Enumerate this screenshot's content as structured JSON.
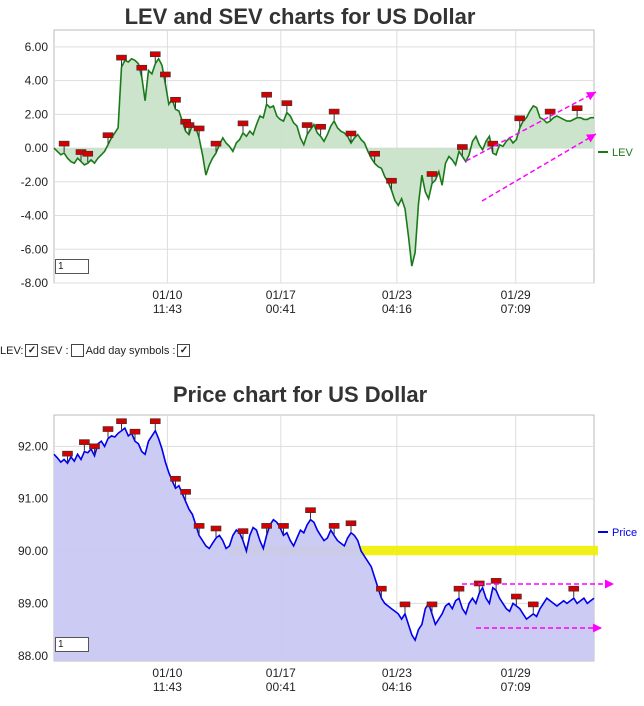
{
  "charts": {
    "lev": {
      "title": "LEV and SEV charts for US Dollar",
      "legend": "LEV",
      "y_ticks": [
        "6.00",
        "4.00",
        "2.00",
        "0.00",
        "-2.00",
        "-4.00",
        "-6.00",
        "-8.00"
      ],
      "x_ticks": [
        {
          "date": "01/10",
          "time": "11:43"
        },
        {
          "date": "01/17",
          "time": "00:41"
        },
        {
          "date": "01/23",
          "time": "04:16"
        },
        {
          "date": "01/29",
          "time": "07:09"
        }
      ],
      "page_input": "1",
      "colors": {
        "line": "#1a7a1a",
        "fill": "#c8e3c8",
        "arrow": "#ff00ff",
        "marker": "#d40000"
      }
    },
    "price": {
      "title": "Price chart for US Dollar",
      "legend": "Price",
      "y_ticks": [
        "92.00",
        "91.00",
        "90.00",
        "89.00",
        "88.00"
      ],
      "x_ticks": [
        {
          "date": "01/10",
          "time": "11:43"
        },
        {
          "date": "01/17",
          "time": "00:41"
        },
        {
          "date": "01/23",
          "time": "04:16"
        },
        {
          "date": "01/29",
          "time": "07:09"
        }
      ],
      "page_input": "1",
      "colors": {
        "line": "#0000ee",
        "fill": "#c8c8f2",
        "band": "#f0f000",
        "arrow": "#ff00ff",
        "marker": "#d40000"
      }
    }
  },
  "controls": {
    "lev_label": "LEV:",
    "sev_label": "SEV :",
    "day_symbols_label": "Add day symbols :",
    "lev_checked": true,
    "sev_checked": false,
    "day_symbols_checked": true
  },
  "chart_data": [
    {
      "type": "line",
      "title": "LEV and SEV charts for US Dollar",
      "x": [
        0,
        1,
        2,
        3,
        4,
        5,
        6,
        7,
        8,
        9,
        10,
        11,
        12,
        13,
        14,
        15,
        16,
        17,
        18,
        19,
        20,
        21,
        22,
        23,
        24,
        25,
        26,
        27,
        28,
        29,
        30,
        31,
        32,
        33,
        34,
        35,
        36,
        37,
        38,
        39,
        40,
        41,
        42,
        43,
        44,
        45,
        46,
        47,
        48,
        49,
        50,
        51,
        52,
        53,
        54,
        55,
        56,
        57,
        58,
        59,
        60,
        61,
        62,
        63,
        64,
        65,
        66,
        67,
        68,
        69,
        70,
        71,
        72,
        73,
        74,
        75,
        76,
        77,
        78,
        79,
        80,
        81,
        82,
        83,
        84,
        85,
        86,
        87,
        88,
        89,
        90,
        91,
        92,
        93,
        94,
        95,
        96,
        97,
        98,
        99,
        100,
        101,
        102,
        103,
        104,
        105,
        106,
        107,
        108,
        109,
        110,
        111,
        112,
        113,
        114,
        115,
        116,
        117,
        118,
        119,
        120,
        121,
        122,
        123,
        124,
        125,
        126,
        127,
        128,
        129,
        130,
        131,
        132,
        133,
        134,
        135,
        136,
        137,
        138,
        139,
        140,
        141,
        142,
        143,
        144,
        145,
        146,
        147,
        148,
        149,
        150,
        151,
        152,
        153,
        154,
        155,
        156,
        157,
        158,
        159,
        160
      ],
      "x_tick_labels": [
        "01/10 11:43",
        "01/17 00:41",
        "01/23 04:16",
        "01/29 07:09"
      ],
      "series": [
        {
          "name": "LEV",
          "values": [
            0.0,
            -0.2,
            -0.4,
            -0.3,
            -0.6,
            -0.8,
            -0.9,
            -0.6,
            -0.8,
            -1.0,
            -0.9,
            -0.7,
            -0.9,
            -0.6,
            -0.4,
            -0.2,
            0.2,
            0.6,
            0.9,
            1.2,
            4.8,
            5.2,
            5.1,
            5.3,
            5.2,
            5.0,
            4.2,
            2.8,
            4.6,
            4.4,
            5.0,
            5.3,
            4.9,
            3.8,
            2.6,
            2.9,
            2.3,
            2.2,
            1.6,
            1.0,
            0.8,
            1.4,
            1.2,
            0.6,
            -0.4,
            -1.6,
            -1.0,
            -0.6,
            -0.3,
            0.2,
            0.6,
            0.3,
            0.1,
            -0.2,
            0.3,
            0.5,
            0.9,
            0.7,
            1.0,
            0.8,
            1.4,
            1.9,
            1.8,
            2.6,
            2.4,
            2.5,
            1.9,
            1.7,
            1.6,
            2.1,
            1.9,
            1.5,
            1.3,
            0.6,
            0.2,
            0.8,
            1.1,
            1.4,
            0.9,
            0.7,
            0.4,
            0.8,
            1.3,
            1.6,
            1.2,
            1.0,
            0.9,
            0.7,
            0.3,
            0.6,
            0.8,
            0.5,
            0.3,
            -0.2,
            -0.6,
            -0.9,
            -1.1,
            -1.2,
            -1.7,
            -2.0,
            -2.5,
            -3.1,
            -3.4,
            -3.0,
            -3.6,
            -5.2,
            -7.0,
            -6.2,
            -3.3,
            -1.6,
            -2.6,
            -3.0,
            -2.1,
            -1.9,
            -1.4,
            -2.2,
            -0.9,
            -0.5,
            -0.7,
            -1.0,
            -0.2,
            -0.5,
            -0.8,
            -0.4,
            0.4,
            0.7,
            0.2,
            -0.1,
            0.4,
            0.7,
            -0.3,
            -0.4,
            0.2,
            0.1,
            0.4,
            0.6,
            0.3,
            0.5,
            1.2,
            1.6,
            1.8,
            2.2,
            2.5,
            2.4,
            1.8,
            1.7,
            1.5,
            1.6,
            1.8,
            1.9,
            1.8,
            1.7,
            1.6,
            1.6,
            1.7,
            1.8,
            1.8,
            1.7,
            1.7,
            1.8,
            1.8
          ]
        }
      ],
      "ylim": [
        -8,
        7
      ]
    },
    {
      "type": "area",
      "title": "Price chart for US Dollar",
      "x": [
        0,
        1,
        2,
        3,
        4,
        5,
        6,
        7,
        8,
        9,
        10,
        11,
        12,
        13,
        14,
        15,
        16,
        17,
        18,
        19,
        20,
        21,
        22,
        23,
        24,
        25,
        26,
        27,
        28,
        29,
        30,
        31,
        32,
        33,
        34,
        35,
        36,
        37,
        38,
        39,
        40,
        41,
        42,
        43,
        44,
        45,
        46,
        47,
        48,
        49,
        50,
        51,
        52,
        53,
        54,
        55,
        56,
        57,
        58,
        59,
        60,
        61,
        62,
        63,
        64,
        65,
        66,
        67,
        68,
        69,
        70,
        71,
        72,
        73,
        74,
        75,
        76,
        77,
        78,
        79,
        80,
        81,
        82,
        83,
        84,
        85,
        86,
        87,
        88,
        89,
        90,
        91,
        92,
        93,
        94,
        95,
        96,
        97,
        98,
        99,
        100,
        101,
        102,
        103,
        104,
        105,
        106,
        107,
        108,
        109,
        110,
        111,
        112,
        113,
        114,
        115,
        116,
        117,
        118,
        119,
        120,
        121,
        122,
        123,
        124,
        125,
        126,
        127,
        128,
        129,
        130,
        131,
        132,
        133,
        134,
        135,
        136,
        137,
        138,
        139,
        140,
        141,
        142,
        143,
        144,
        145,
        146,
        147,
        148,
        149,
        150,
        151,
        152,
        153,
        154,
        155,
        156,
        157,
        158,
        159,
        160
      ],
      "x_tick_labels": [
        "01/10 11:43",
        "01/17 00:41",
        "01/23 04:16",
        "01/29 07:09"
      ],
      "series": [
        {
          "name": "Price",
          "values": [
            91.85,
            91.78,
            91.7,
            91.75,
            91.68,
            91.8,
            91.72,
            91.85,
            91.75,
            91.9,
            91.88,
            91.95,
            91.82,
            92.05,
            92.1,
            92.0,
            92.15,
            92.2,
            92.18,
            92.25,
            92.3,
            92.35,
            92.2,
            92.25,
            92.1,
            92.05,
            91.9,
            91.85,
            92.1,
            92.2,
            92.3,
            92.15,
            91.95,
            91.7,
            91.5,
            91.35,
            91.2,
            91.25,
            91.1,
            90.95,
            90.8,
            90.7,
            90.5,
            90.3,
            90.2,
            90.1,
            90.05,
            90.15,
            90.25,
            90.3,
            90.2,
            90.05,
            90.1,
            90.3,
            90.4,
            90.35,
            90.2,
            90.0,
            90.3,
            90.45,
            90.4,
            90.2,
            90.05,
            90.3,
            90.5,
            90.6,
            90.55,
            90.45,
            90.3,
            90.35,
            90.2,
            90.1,
            90.25,
            90.4,
            90.35,
            90.5,
            90.6,
            90.55,
            90.4,
            90.3,
            90.2,
            90.25,
            90.4,
            90.3,
            90.2,
            90.15,
            90.1,
            90.25,
            90.35,
            90.3,
            90.2,
            90.0,
            89.9,
            89.8,
            89.7,
            89.5,
            89.3,
            89.1,
            89.0,
            88.95,
            88.9,
            88.85,
            88.8,
            88.7,
            88.8,
            88.6,
            88.4,
            88.3,
            88.5,
            88.6,
            88.9,
            89.0,
            88.8,
            88.6,
            88.7,
            88.8,
            88.95,
            89.0,
            88.9,
            89.05,
            89.1,
            88.9,
            88.8,
            89.0,
            89.1,
            89.0,
            89.2,
            89.3,
            89.1,
            89.0,
            89.3,
            89.25,
            89.1,
            89.0,
            88.9,
            88.85,
            89.0,
            88.95,
            88.9,
            88.8,
            88.7,
            88.75,
            88.8,
            88.75,
            88.9,
            89.0,
            89.1,
            89.05,
            89.0,
            88.95,
            89.0,
            89.05,
            89.0,
            89.05,
            89.1,
            89.0,
            89.05,
            89.1,
            89.0,
            89.05,
            89.1
          ]
        }
      ],
      "ylim": [
        87.9,
        92.6
      ]
    }
  ]
}
